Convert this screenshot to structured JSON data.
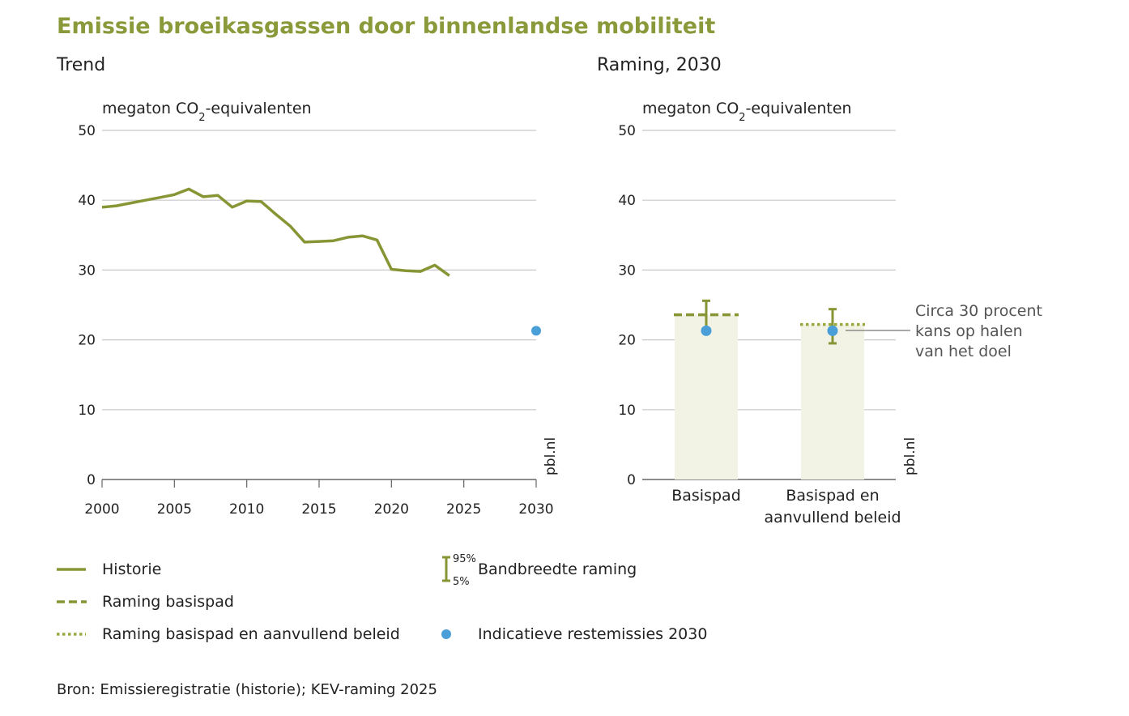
{
  "colors": {
    "title": "#8a9a3a",
    "line": "#889535",
    "dot": "#4a9fd8",
    "bar_fill": "#f2f3e4",
    "grid": "#c8c8c8",
    "axis": "#666666",
    "annotation": "#555555"
  },
  "title": "Emissie broeikasgassen door binnenlandse mobiliteit",
  "source": "Bron: Emissieregistratie (historie); KEV-raming 2025",
  "chart_data": [
    {
      "type": "line",
      "subtitle": "Trend",
      "ylabel_main": "megaton CO",
      "ylabel_sub": "2",
      "ylabel_rest": "-equivalenten",
      "watermark": "pbl.nl",
      "ylim": [
        0,
        50
      ],
      "yticks": [
        "0",
        "10",
        "20",
        "30",
        "40",
        "50"
      ],
      "xlim": [
        2000,
        2030
      ],
      "xticks": [
        "2000",
        "2005",
        "2010",
        "2015",
        "2020",
        "2025",
        "2030"
      ],
      "grid": true,
      "series": [
        {
          "name": "Historie",
          "x": [
            2000,
            2001,
            2002,
            2003,
            2004,
            2005,
            2006,
            2007,
            2008,
            2009,
            2010,
            2011,
            2012,
            2013,
            2014,
            2015,
            2016,
            2017,
            2018,
            2019,
            2020,
            2021,
            2022,
            2023,
            2024
          ],
          "y": [
            39.0,
            39.2,
            39.6,
            40.0,
            40.4,
            40.8,
            41.6,
            40.5,
            40.7,
            39.0,
            39.9,
            39.8,
            38.0,
            36.3,
            34.0,
            34.1,
            34.2,
            34.7,
            34.9,
            34.3,
            30.1,
            29.9,
            29.8,
            30.7,
            29.2
          ]
        },
        {
          "name": "Indicatieve restemissies 2030",
          "x": [
            2030
          ],
          "y": [
            21.3
          ]
        }
      ]
    },
    {
      "type": "bar",
      "subtitle": "Raming, 2030",
      "ylabel_main": "megaton CO",
      "ylabel_sub": "2",
      "ylabel_rest": "-equivalenten",
      "watermark": "pbl.nl",
      "ylim": [
        0,
        50
      ],
      "yticks": [
        "0",
        "10",
        "20",
        "30",
        "40",
        "50"
      ],
      "grid": true,
      "categories": [
        {
          "line1": "Basispad",
          "line2": ""
        },
        {
          "line1": "Basispad en",
          "line2": "aanvullend beleid"
        }
      ],
      "values": [
        23.6,
        22.2
      ],
      "band_low": [
        21.0,
        19.5
      ],
      "band_high": [
        25.6,
        24.4
      ],
      "restemissies": [
        21.3,
        21.3
      ],
      "annotation": [
        "Circa 30 procent",
        "kans op halen",
        "van het doel"
      ]
    }
  ],
  "legend": {
    "historie": "Historie",
    "basispad": "Raming basispad",
    "aanvullend": "Raming basispad en aanvullend beleid",
    "band": "Bandbreedte raming",
    "band_high": "95%",
    "band_low": "5%",
    "dot": "Indicatieve restemissies 2030"
  }
}
